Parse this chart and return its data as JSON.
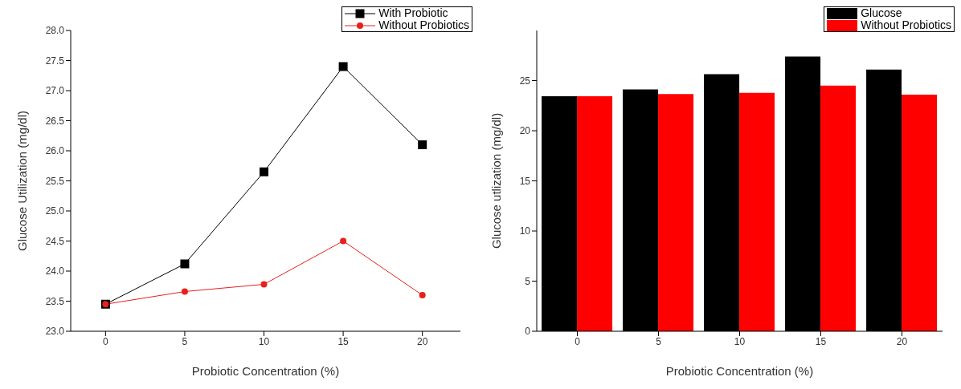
{
  "chart_data": [
    {
      "type": "line",
      "xlabel": "Probiotic Concentration (%)",
      "ylabel": "Glucose Utilization (mg/dl)",
      "x": [
        0,
        5,
        10,
        15,
        20
      ],
      "xlim": [
        -2.2,
        22.4
      ],
      "xticks": [
        0,
        5,
        10,
        15,
        20
      ],
      "ylim": [
        23.0,
        28.0
      ],
      "yticks": [
        {
          "value": 23,
          "label": "23.0"
        },
        {
          "value": 23.5,
          "label": "23.5"
        },
        {
          "value": 24,
          "label": "24.0"
        },
        {
          "value": 24.5,
          "label": "24.5"
        },
        {
          "value": 25,
          "label": "25.0"
        },
        {
          "value": 25.5,
          "label": "25.5"
        },
        {
          "value": 26,
          "label": "26.0"
        },
        {
          "value": 26.5,
          "label": "26.5"
        },
        {
          "value": 27,
          "label": "27.0"
        },
        {
          "value": 27.5,
          "label": "27.5"
        },
        {
          "value": 28,
          "label": "28.0"
        }
      ],
      "grid": false,
      "legend": "top right",
      "line_style": "solid",
      "series": [
        {
          "name": "With Probiotic",
          "color": "#000000",
          "marker": "square",
          "values": [
            23.45,
            24.12,
            25.65,
            27.4,
            26.1
          ]
        },
        {
          "name": "Without Probiotics",
          "color": "#e8201c",
          "marker": "circle",
          "values": [
            23.45,
            23.66,
            23.78,
            24.5,
            23.6
          ]
        }
      ]
    },
    {
      "type": "bar",
      "xlabel": "Probiotic Concentration (%)",
      "ylabel": "Glucose utlization (mg/dl)",
      "categories": [
        "0",
        "5",
        "10",
        "15",
        "20"
      ],
      "ylim": [
        0,
        30
      ],
      "yticks": [
        0,
        5,
        10,
        15,
        20,
        25
      ],
      "grid": false,
      "legend": "top right",
      "series": [
        {
          "name": "Glucose",
          "color": "#000000",
          "values": [
            23.45,
            24.12,
            25.65,
            27.4,
            26.1
          ]
        },
        {
          "name": "Without Probiotics",
          "color": "#ff0000",
          "values": [
            23.45,
            23.66,
            23.78,
            24.5,
            23.6
          ]
        }
      ]
    }
  ]
}
